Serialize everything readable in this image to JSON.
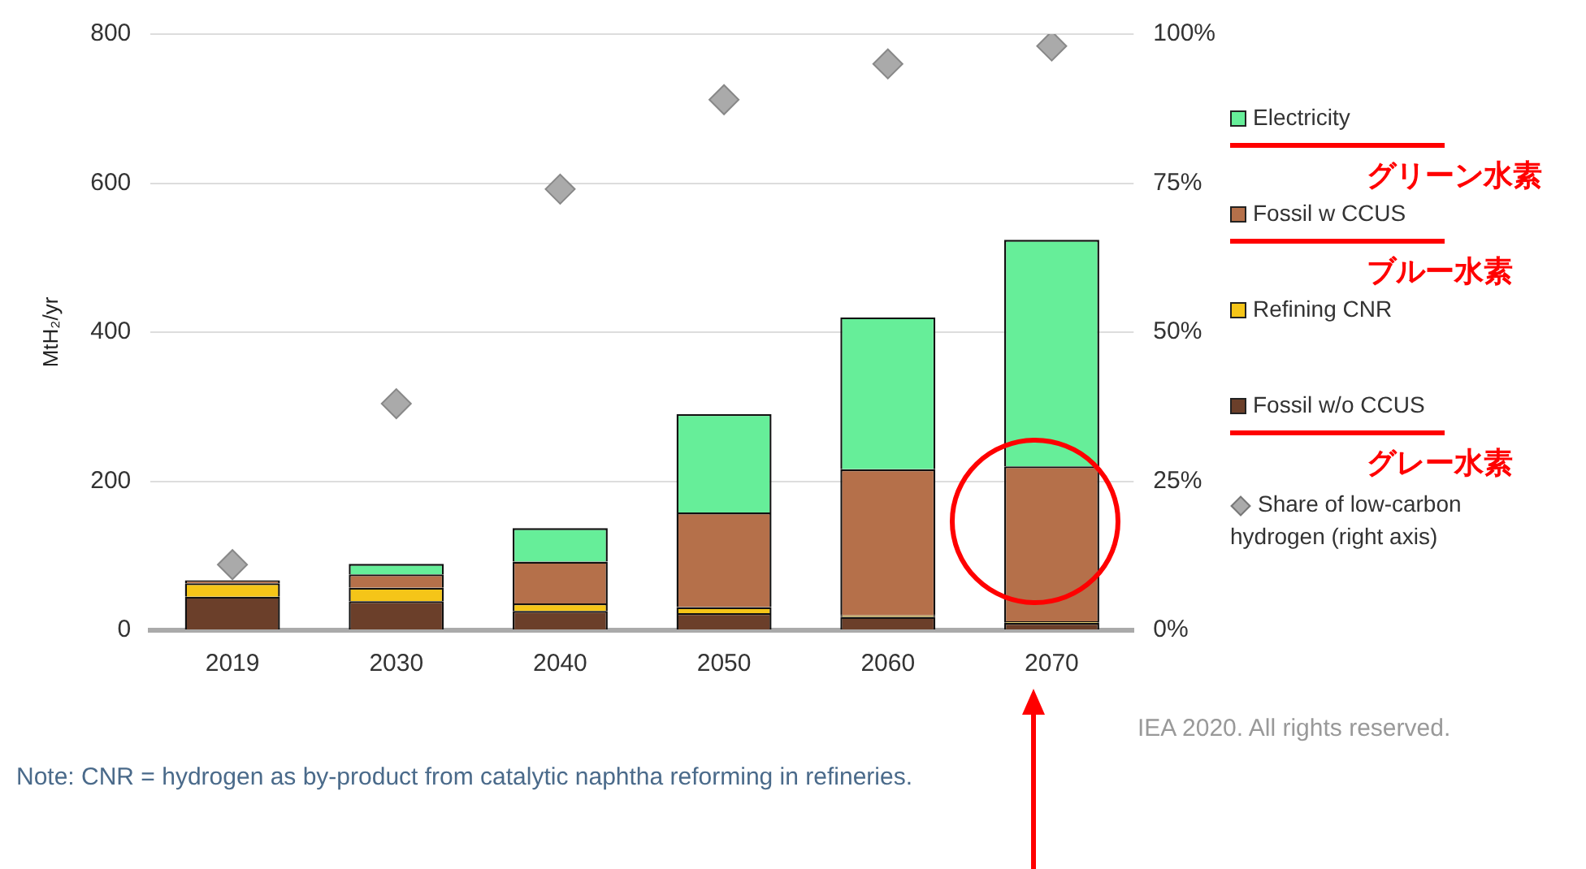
{
  "chart_data": {
    "type": "bar",
    "stacked": true,
    "ylabel": "MtH₂/yr",
    "categories": [
      "2019",
      "2030",
      "2040",
      "2050",
      "2060",
      "2070"
    ],
    "series": [
      {
        "name": "Fossil w/o CCUS",
        "color": "#6b3f2a",
        "values": [
          45,
          39,
          26,
          23,
          18,
          10
        ]
      },
      {
        "name": "Refining CNR",
        "color": "#f5c518",
        "values": [
          18,
          18,
          10,
          8,
          2,
          2
        ]
      },
      {
        "name": "Fossil w CCUS",
        "color": "#b5704a",
        "values": [
          4,
          18,
          56,
          127,
          196,
          208
        ]
      },
      {
        "name": "Electricity",
        "color": "#66ee99",
        "values": [
          0,
          14,
          45,
          132,
          204,
          304
        ]
      },
      {
        "name": "Share of low-carbon hydrogen (right axis)",
        "type": "scatter",
        "axis": "y2",
        "marker": "diamond",
        "color": "#aaaaaa",
        "values": [
          11,
          38,
          74,
          89,
          95,
          98
        ]
      }
    ],
    "ylim": [
      0,
      800
    ],
    "yticks": [
      0,
      200,
      400,
      600,
      800
    ],
    "y2lim": [
      0,
      100
    ],
    "y2ticks": [
      {
        "value": 0,
        "label": "0%"
      },
      {
        "value": 25,
        "label": "25%"
      },
      {
        "value": 50,
        "label": "50%"
      },
      {
        "value": 75,
        "label": "75%"
      },
      {
        "value": 100,
        "label": "100%"
      }
    ],
    "grid": "y",
    "legend": "right",
    "annotations": [
      "Note: CNR = hydrogen as by-product from catalytic naphtha reforming in refineries.",
      "IEA 2020. All rights reserved.",
      "グリーン水素",
      "ブルー水素",
      "グレー水素"
    ]
  }
}
